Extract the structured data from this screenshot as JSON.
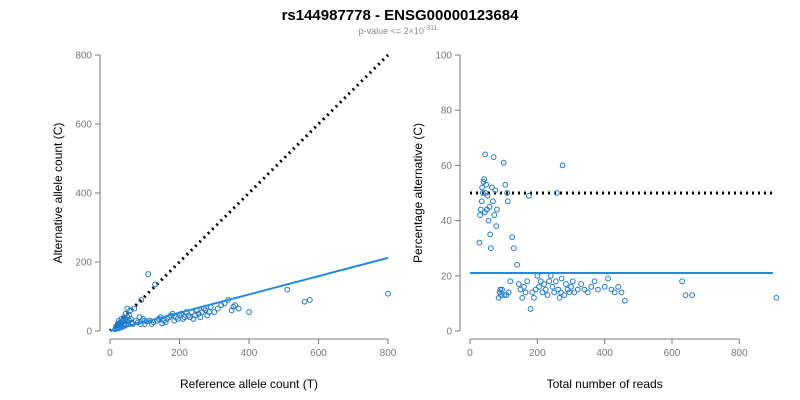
{
  "figure": {
    "title": "rs144987778 - ENSG00000123684",
    "subtitle_prefix": "p-value <= 2×10",
    "subtitle_exponent": "-311"
  },
  "chart_data": [
    {
      "type": "scatter",
      "xlabel": "Reference allele count (T)",
      "ylabel": "Alternative allele count (C)",
      "xlim": [
        0,
        800
      ],
      "ylim": [
        0,
        800
      ],
      "xticks": [
        0,
        200,
        400,
        600,
        800
      ],
      "yticks": [
        0,
        200,
        400,
        600,
        800
      ],
      "grid": false,
      "reference_line": {
        "style": "dotted",
        "color": "#000000",
        "x": [
          0,
          800
        ],
        "y": [
          0,
          800
        ]
      },
      "fit_line": {
        "style": "solid",
        "color": "#1f8ae0",
        "x": [
          0,
          800
        ],
        "y": [
          0,
          212
        ]
      },
      "points": [
        [
          15,
          5
        ],
        [
          18,
          8
        ],
        [
          20,
          10
        ],
        [
          20,
          15
        ],
        [
          22,
          12
        ],
        [
          22,
          20
        ],
        [
          24,
          18
        ],
        [
          25,
          22
        ],
        [
          25,
          30
        ],
        [
          26,
          8
        ],
        [
          28,
          14
        ],
        [
          30,
          18
        ],
        [
          30,
          10
        ],
        [
          30,
          25
        ],
        [
          32,
          22
        ],
        [
          33,
          35
        ],
        [
          35,
          28
        ],
        [
          36,
          12
        ],
        [
          38,
          30
        ],
        [
          40,
          20
        ],
        [
          40,
          40
        ],
        [
          42,
          15
        ],
        [
          44,
          35
        ],
        [
          45,
          50
        ],
        [
          46,
          18
        ],
        [
          48,
          28
        ],
        [
          50,
          65
        ],
        [
          50,
          40
        ],
        [
          52,
          22
        ],
        [
          55,
          30
        ],
        [
          55,
          45
        ],
        [
          58,
          60
        ],
        [
          60,
          35
        ],
        [
          62,
          25
        ],
        [
          65,
          20
        ],
        [
          70,
          65
        ],
        [
          75,
          30
        ],
        [
          80,
          25
        ],
        [
          85,
          40
        ],
        [
          88,
          20
        ],
        [
          90,
          90
        ],
        [
          95,
          35
        ],
        [
          100,
          20
        ],
        [
          100,
          30
        ],
        [
          105,
          28
        ],
        [
          110,
          165
        ],
        [
          115,
          30
        ],
        [
          120,
          20
        ],
        [
          125,
          25
        ],
        [
          130,
          135
        ],
        [
          135,
          30
        ],
        [
          140,
          35
        ],
        [
          145,
          40
        ],
        [
          150,
          22
        ],
        [
          155,
          30
        ],
        [
          160,
          25
        ],
        [
          165,
          35
        ],
        [
          170,
          40
        ],
        [
          175,
          45
        ],
        [
          180,
          50
        ],
        [
          185,
          30
        ],
        [
          190,
          40
        ],
        [
          195,
          35
        ],
        [
          200,
          45
        ],
        [
          205,
          50
        ],
        [
          210,
          35
        ],
        [
          215,
          40
        ],
        [
          220,
          55
        ],
        [
          225,
          45
        ],
        [
          230,
          40
        ],
        [
          235,
          55
        ],
        [
          240,
          35
        ],
        [
          245,
          45
        ],
        [
          250,
          60
        ],
        [
          255,
          50
        ],
        [
          260,
          40
        ],
        [
          265,
          55
        ],
        [
          270,
          65
        ],
        [
          275,
          60
        ],
        [
          280,
          45
        ],
        [
          285,
          55
        ],
        [
          290,
          70
        ],
        [
          300,
          55
        ],
        [
          310,
          65
        ],
        [
          320,
          75
        ],
        [
          330,
          80
        ],
        [
          340,
          90
        ],
        [
          350,
          60
        ],
        [
          355,
          70
        ],
        [
          360,
          75
        ],
        [
          370,
          65
        ],
        [
          400,
          55
        ],
        [
          510,
          120
        ],
        [
          560,
          85
        ],
        [
          575,
          90
        ],
        [
          800,
          108
        ]
      ]
    },
    {
      "type": "scatter",
      "xlabel": "Total number of reads",
      "ylabel": "Percentage alternative (C)",
      "xlim": [
        0,
        900
      ],
      "ylim": [
        0,
        100
      ],
      "xticks": [
        0,
        200,
        400,
        600,
        800
      ],
      "yticks": [
        0,
        20,
        40,
        60,
        80,
        100
      ],
      "grid": false,
      "reference_line": {
        "style": "dotted",
        "color": "#000000",
        "y": 50
      },
      "fit_line": {
        "style": "solid",
        "color": "#1f8ae0",
        "y": 21
      },
      "points": [
        [
          28,
          32
        ],
        [
          30,
          42
        ],
        [
          32,
          44
        ],
        [
          35,
          47
        ],
        [
          36,
          52
        ],
        [
          38,
          50
        ],
        [
          40,
          54
        ],
        [
          42,
          55
        ],
        [
          44,
          43
        ],
        [
          45,
          64
        ],
        [
          46,
          50
        ],
        [
          48,
          53
        ],
        [
          50,
          44
        ],
        [
          52,
          49
        ],
        [
          55,
          40
        ],
        [
          58,
          45
        ],
        [
          60,
          35
        ],
        [
          62,
          30
        ],
        [
          65,
          52
        ],
        [
          68,
          47
        ],
        [
          70,
          63
        ],
        [
          72,
          42
        ],
        [
          75,
          51
        ],
        [
          78,
          38
        ],
        [
          80,
          44
        ],
        [
          85,
          12
        ],
        [
          88,
          14
        ],
        [
          90,
          15
        ],
        [
          92,
          13
        ],
        [
          95,
          15
        ],
        [
          100,
          61
        ],
        [
          102,
          13
        ],
        [
          105,
          53
        ],
        [
          108,
          13
        ],
        [
          110,
          50
        ],
        [
          112,
          47
        ],
        [
          115,
          14
        ],
        [
          120,
          18
        ],
        [
          125,
          34
        ],
        [
          130,
          30
        ],
        [
          140,
          24
        ],
        [
          145,
          17
        ],
        [
          150,
          15
        ],
        [
          155,
          12
        ],
        [
          160,
          16
        ],
        [
          165,
          14
        ],
        [
          170,
          18
        ],
        [
          175,
          49
        ],
        [
          180,
          8
        ],
        [
          185,
          14
        ],
        [
          190,
          12
        ],
        [
          195,
          15
        ],
        [
          200,
          20
        ],
        [
          205,
          16
        ],
        [
          210,
          18
        ],
        [
          215,
          14
        ],
        [
          220,
          17
        ],
        [
          225,
          15
        ],
        [
          230,
          13
        ],
        [
          235,
          18
        ],
        [
          240,
          20
        ],
        [
          245,
          16
        ],
        [
          250,
          14
        ],
        [
          255,
          18
        ],
        [
          258,
          50
        ],
        [
          262,
          15
        ],
        [
          266,
          12
        ],
        [
          270,
          14
        ],
        [
          272,
          19
        ],
        [
          275,
          60
        ],
        [
          280,
          13
        ],
        [
          285,
          17
        ],
        [
          290,
          15
        ],
        [
          295,
          14
        ],
        [
          300,
          16
        ],
        [
          305,
          18
        ],
        [
          310,
          14
        ],
        [
          320,
          15
        ],
        [
          330,
          17
        ],
        [
          340,
          15
        ],
        [
          350,
          14
        ],
        [
          360,
          16
        ],
        [
          370,
          18
        ],
        [
          380,
          15
        ],
        [
          400,
          16
        ],
        [
          410,
          19
        ],
        [
          420,
          15
        ],
        [
          430,
          14
        ],
        [
          440,
          16
        ],
        [
          450,
          14
        ],
        [
          460,
          11
        ],
        [
          630,
          18
        ],
        [
          640,
          13
        ],
        [
          660,
          13
        ],
        [
          910,
          12
        ]
      ]
    }
  ]
}
